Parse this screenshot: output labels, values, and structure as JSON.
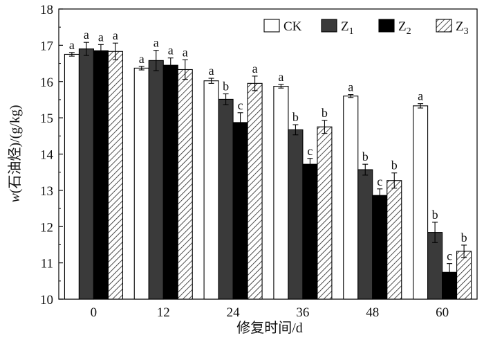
{
  "chart_data": {
    "type": "bar",
    "title": "",
    "xlabel": "修复时间/d",
    "ylabel": "w(石油烃)/(g/kg)",
    "ylabel_parts": {
      "italic_var": "w",
      "rest": "(石油烃)/(g/kg)"
    },
    "categories": [
      "0",
      "12",
      "24",
      "36",
      "48",
      "60"
    ],
    "ylim": [
      10,
      18
    ],
    "yticks": [
      10,
      11,
      12,
      13,
      14,
      15,
      16,
      17,
      18
    ],
    "grid": false,
    "legend_position": "top-right",
    "series": [
      {
        "name": "CK",
        "legend_base": "CK",
        "legend_sub": "",
        "fill": "white",
        "values": [
          16.75,
          16.37,
          16.02,
          15.87,
          15.6,
          15.33
        ],
        "errors": [
          0.05,
          0.05,
          0.07,
          0.05,
          0.04,
          0.06
        ],
        "letters": [
          "a",
          "a",
          "a",
          "a",
          "a",
          "a"
        ]
      },
      {
        "name": "Z1",
        "legend_base": "Z",
        "legend_sub": "1",
        "fill": "dark-gray",
        "values": [
          16.9,
          16.58,
          15.51,
          14.67,
          13.57,
          11.84
        ],
        "errors": [
          0.18,
          0.28,
          0.15,
          0.14,
          0.15,
          0.28
        ],
        "letters": [
          "a",
          "a",
          "b",
          "b",
          "b",
          "b"
        ]
      },
      {
        "name": "Z2",
        "legend_base": "Z",
        "legend_sub": "2",
        "fill": "black",
        "values": [
          16.85,
          16.45,
          14.87,
          13.72,
          12.86,
          10.74
        ],
        "errors": [
          0.17,
          0.2,
          0.27,
          0.16,
          0.18,
          0.24
        ],
        "letters": [
          "a",
          "a",
          "c",
          "c",
          "c",
          "c"
        ]
      },
      {
        "name": "Z3",
        "legend_base": "Z",
        "legend_sub": "3",
        "fill": "hatched",
        "values": [
          16.83,
          16.33,
          15.95,
          14.75,
          13.27,
          11.32
        ],
        "errors": [
          0.23,
          0.27,
          0.2,
          0.18,
          0.21,
          0.17
        ],
        "letters": [
          "a",
          "a",
          "a",
          "b",
          "b",
          "b"
        ]
      }
    ]
  },
  "colors": {
    "ck_fill": "#ffffff",
    "z1_fill": "#3a3a3a",
    "z2_fill": "#000000",
    "z3_hatch": "#222222",
    "axis": "#000000",
    "background": "#ffffff"
  }
}
